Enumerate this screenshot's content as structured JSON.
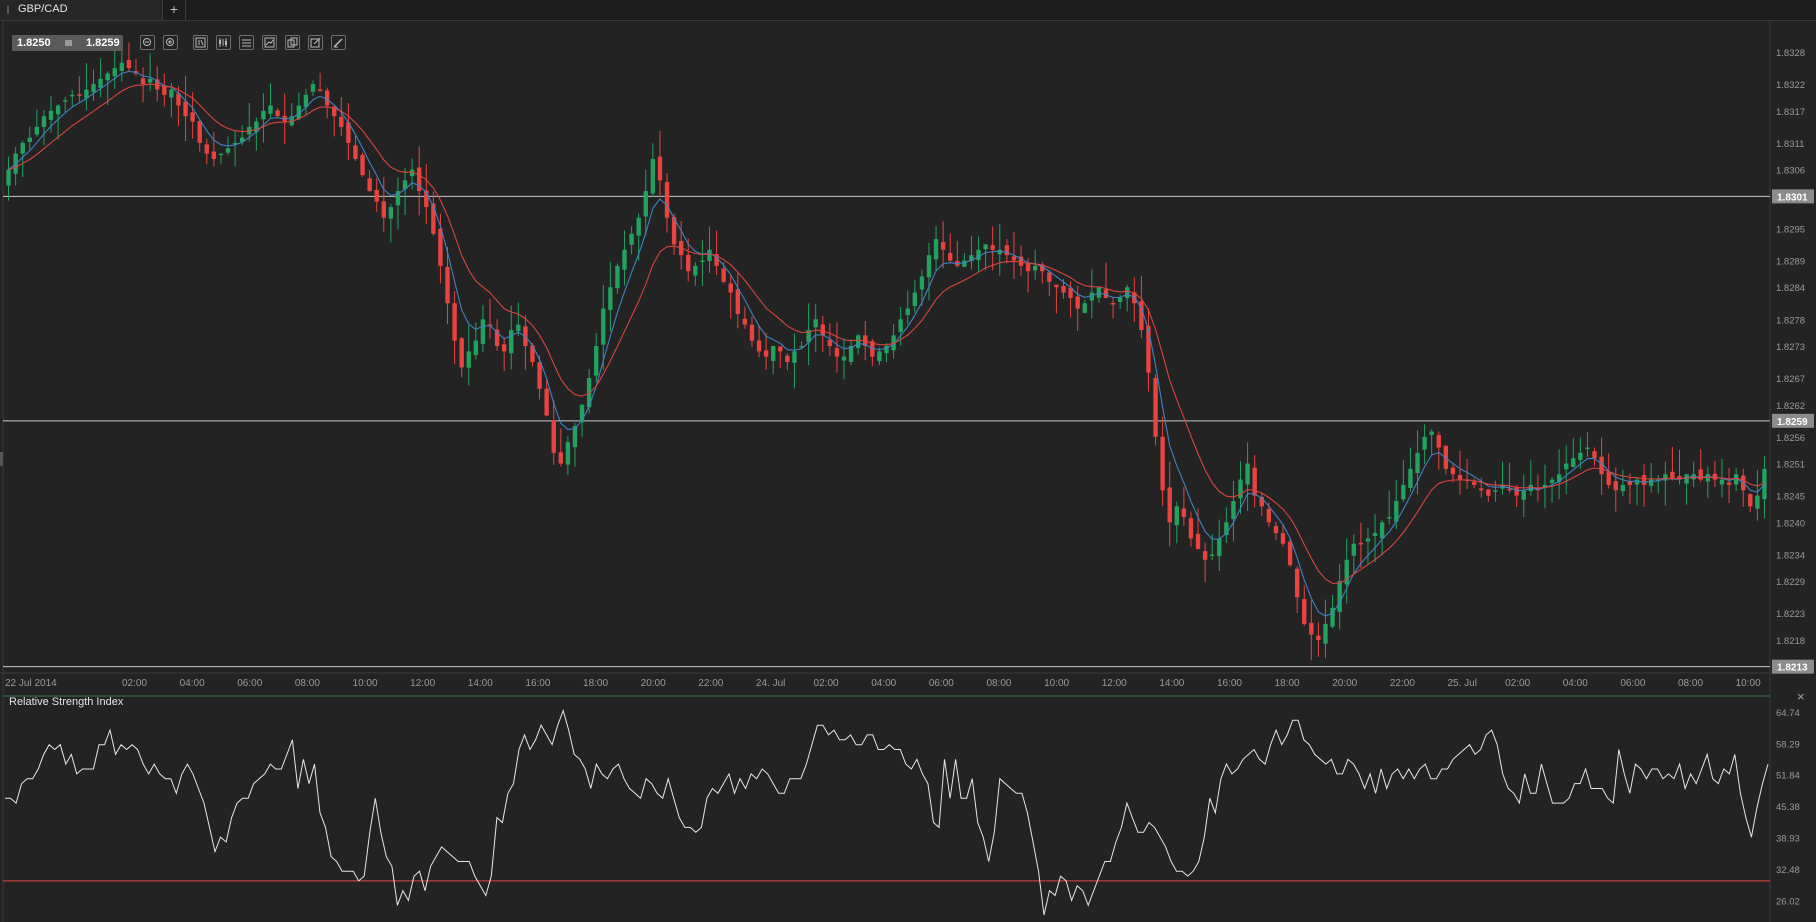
{
  "tabs": [
    {
      "label": "GBP/CAD"
    }
  ],
  "tab_add_label": "+",
  "quote": {
    "bid": "1.8250",
    "ask": "1.8259"
  },
  "toolbar": {
    "tools": [
      "zoom-out-icon",
      "zoom-in-icon",
      "timeframe-icon",
      "chart-type-icon",
      "indicators-icon",
      "autoscale-icon",
      "copy-icon",
      "edit-icon",
      "draw-icon"
    ]
  },
  "colors": {
    "background": "#232323",
    "bull": "#23a25f",
    "bear": "#e8443f",
    "ma_fast": "#3f82c6",
    "ma_slow": "#d9453e",
    "rsi_line": "#e6e6e6",
    "rsi_level": "#e24a3d"
  },
  "price_axis": {
    "ticks": [
      "1.8328",
      "1.8322",
      "1.8317",
      "1.8311",
      "1.8306",
      "1.8295",
      "1.8289",
      "1.8284",
      "1.8278",
      "1.8273",
      "1.8267",
      "1.8262",
      "1.8256",
      "1.8251",
      "1.8245",
      "1.8240",
      "1.8234",
      "1.8229",
      "1.8223",
      "1.8218"
    ],
    "range": [
      1.8212,
      1.8334
    ]
  },
  "horizontal_lines": [
    {
      "value": 1.8301,
      "label": "1.8301"
    },
    {
      "value": 1.8259,
      "label": "1.8259"
    },
    {
      "value": 1.8213,
      "label": "1.8213"
    }
  ],
  "time_axis": {
    "labels": [
      "22 Jul 2014",
      "02:00",
      "04:00",
      "06:00",
      "08:00",
      "10:00",
      "12:00",
      "14:00",
      "16:00",
      "18:00",
      "20:00",
      "22:00",
      "24. Jul",
      "02:00",
      "04:00",
      "06:00",
      "08:00",
      "10:00",
      "12:00",
      "14:00",
      "16:00",
      "18:00",
      "20:00",
      "22:00",
      "25. Jul",
      "02:00",
      "04:00",
      "06:00",
      "08:00",
      "10:00"
    ]
  },
  "rsi": {
    "title": "Relative Strength Index",
    "close_label": "×",
    "ticks": [
      "64.74",
      "58.29",
      "51.84",
      "45.38",
      "38.93",
      "32.48",
      "26.02"
    ],
    "level": 30,
    "range": [
      23,
      68
    ],
    "values": [
      47,
      47,
      46,
      50,
      51,
      51,
      53,
      56,
      58,
      57,
      58,
      54,
      56,
      52,
      53,
      53,
      53,
      58,
      58,
      61,
      56,
      58,
      57,
      58,
      57,
      54,
      52,
      54,
      52,
      51,
      51,
      48,
      52,
      54,
      52,
      49,
      46,
      41,
      36,
      39,
      38,
      43,
      46,
      47,
      47,
      50,
      51,
      52,
      54,
      53,
      53,
      56,
      59,
      49,
      55,
      50,
      54,
      44,
      41,
      35,
      34,
      32,
      32,
      32,
      30,
      31,
      40,
      47,
      40,
      35,
      33,
      25,
      28,
      26,
      31,
      32,
      28,
      33,
      35,
      37,
      36,
      35,
      34,
      34,
      34,
      31,
      29,
      27,
      31,
      43,
      42,
      48,
      50,
      57,
      60,
      57,
      59,
      62,
      60,
      58,
      62,
      65,
      61,
      56,
      55,
      53,
      49,
      54,
      52,
      51,
      53,
      54,
      51,
      49,
      48,
      47,
      51,
      50,
      48,
      47,
      51,
      47,
      43,
      41,
      41,
      40,
      41,
      47,
      49,
      48,
      50,
      52,
      48,
      51,
      49,
      52,
      51,
      53,
      52,
      50,
      48,
      48,
      51,
      51,
      51,
      54,
      58,
      62,
      62,
      60,
      61,
      59,
      59,
      60,
      58,
      58,
      60,
      60,
      57,
      57,
      58,
      57,
      57,
      54,
      53,
      55,
      52,
      50,
      42,
      41,
      55,
      47,
      55,
      47,
      47,
      51,
      42,
      39,
      34,
      40,
      51,
      50,
      49,
      48,
      48,
      44,
      38,
      32,
      23,
      28,
      27,
      31,
      30,
      26,
      29,
      28,
      25,
      28,
      31,
      34,
      34,
      38,
      41,
      46,
      43,
      40,
      40,
      42,
      41,
      39,
      37,
      34,
      32,
      32,
      31,
      32,
      34,
      39,
      47,
      44,
      51,
      54,
      52,
      53,
      55,
      56,
      57,
      55,
      54,
      58,
      61,
      58,
      60,
      63,
      63,
      59,
      58,
      56,
      55,
      54,
      55,
      52,
      52,
      55,
      54,
      52,
      49,
      52,
      48,
      53,
      49,
      52,
      53,
      51,
      53,
      51,
      53,
      54,
      51,
      51,
      53,
      53,
      55,
      56,
      57,
      58,
      56,
      57,
      60,
      61,
      58,
      52,
      49,
      48,
      46,
      52,
      48,
      48,
      54,
      50,
      46,
      46,
      46,
      47,
      50,
      50,
      53,
      49,
      49,
      49,
      47,
      46,
      57,
      52,
      48,
      54,
      53,
      51,
      53,
      53,
      51,
      52,
      51,
      54,
      49,
      52,
      50,
      53,
      56,
      51,
      50,
      53,
      52,
      56,
      48,
      43,
      39,
      45,
      50,
      54
    ]
  },
  "price_series": [
    1.8306,
    1.8309,
    1.8311,
    1.8312,
    1.8314,
    1.8316,
    1.8317,
    1.8318,
    1.8319,
    1.832,
    1.832,
    1.8321,
    1.8322,
    1.8323,
    1.8324,
    1.8325,
    1.8326,
    1.8325,
    1.8324,
    1.8322,
    1.8323,
    1.8321,
    1.832,
    1.8321,
    1.8318,
    1.8316,
    1.8315,
    1.8311,
    1.8309,
    1.8308,
    1.8309,
    1.831,
    1.8311,
    1.8312,
    1.8314,
    1.8315,
    1.8317,
    1.8318,
    1.8316,
    1.8315,
    1.8316,
    1.8318,
    1.832,
    1.8322,
    1.8321,
    1.8318,
    1.8316,
    1.8314,
    1.8311,
    1.8308,
    1.8305,
    1.8302,
    1.83,
    1.8297,
    1.8299,
    1.8302,
    1.8304,
    1.8306,
    1.8302,
    1.8299,
    1.8294,
    1.8288,
    1.8281,
    1.8274,
    1.8269,
    1.8272,
    1.8274,
    1.8278,
    1.8277,
    1.8273,
    1.8272,
    1.8276,
    1.8277,
    1.8273,
    1.827,
    1.8265,
    1.826,
    1.8253,
    1.8251,
    1.8255,
    1.8258,
    1.8262,
    1.8267,
    1.8273,
    1.828,
    1.8284,
    1.8288,
    1.8291,
    1.8294,
    1.8297,
    1.8302,
    1.8308,
    1.8304,
    1.8297,
    1.8292,
    1.829,
    1.8287,
    1.8288,
    1.8289,
    1.8291,
    1.8288,
    1.8285,
    1.8283,
    1.8279,
    1.8277,
    1.8274,
    1.8272,
    1.8271,
    1.8273,
    1.8272,
    1.827,
    1.8272,
    1.8273,
    1.8276,
    1.8278,
    1.8275,
    1.8273,
    1.8271,
    1.8271,
    1.8273,
    1.8275,
    1.8273,
    1.8271,
    1.8272,
    1.8273,
    1.8275,
    1.8278,
    1.828,
    1.8283,
    1.8286,
    1.829,
    1.8293,
    1.8291,
    1.8289,
    1.8288,
    1.8289,
    1.829,
    1.8291,
    1.8292,
    1.8291,
    1.8291,
    1.829,
    1.8289,
    1.8288,
    1.8287,
    1.8288,
    1.8287,
    1.8285,
    1.8284,
    1.8283,
    1.8282,
    1.828,
    1.8281,
    1.8283,
    1.8284,
    1.8282,
    1.8281,
    1.8282,
    1.8284,
    1.8281,
    1.8276,
    1.8268,
    1.8256,
    1.8246,
    1.824,
    1.8243,
    1.8241,
    1.8237,
    1.8235,
    1.8233,
    1.8234,
    1.8237,
    1.824,
    1.8244,
    1.8248,
    1.8251,
    1.8245,
    1.8243,
    1.824,
    1.8238,
    1.8236,
    1.8232,
    1.8226,
    1.8221,
    1.8219,
    1.8218,
    1.8221,
    1.8224,
    1.8229,
    1.8233,
    1.8236,
    1.8236,
    1.8237,
    1.8238,
    1.824,
    1.8241,
    1.8244,
    1.8247,
    1.825,
    1.8253,
    1.8256,
    1.8257,
    1.8254,
    1.825,
    1.8249,
    1.8248,
    1.8248,
    1.8247,
    1.8246,
    1.8245,
    1.8246,
    1.8247,
    1.8246,
    1.8245,
    1.8246,
    1.8247,
    1.8246,
    1.8247,
    1.8248,
    1.8249,
    1.8251,
    1.8252,
    1.8253,
    1.8254,
    1.8252,
    1.8249,
    1.8247,
    1.8246,
    1.8247,
    1.8247,
    1.8248,
    1.8247,
    1.8248,
    1.8248,
    1.8249,
    1.8248,
    1.8248,
    1.8249,
    1.8249,
    1.8248,
    1.8249,
    1.8248,
    1.8248,
    1.8247,
    1.8249,
    1.8246,
    1.8243,
    1.8245,
    1.825
  ]
}
